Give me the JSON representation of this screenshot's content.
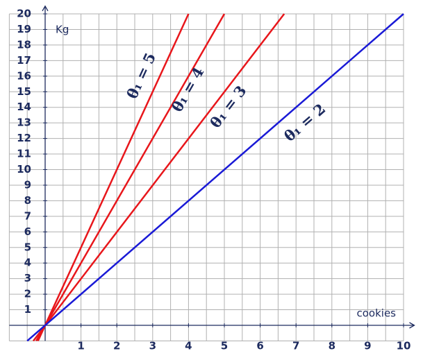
{
  "chart_data": {
    "type": "line",
    "x_label": "cookies",
    "y_label": "Kg",
    "xlim": [
      -1,
      10.3
    ],
    "ylim": [
      -1,
      20.5
    ],
    "xticks": [
      1,
      2,
      3,
      4,
      5,
      6,
      7,
      8,
      9,
      10
    ],
    "yticks": [
      1,
      2,
      3,
      4,
      5,
      6,
      7,
      8,
      9,
      10,
      11,
      12,
      13,
      14,
      15,
      16,
      17,
      18,
      19,
      20
    ],
    "xgrid": [
      -1,
      -0.5,
      0,
      0.5,
      1,
      1.5,
      2,
      2.5,
      3,
      3.5,
      4,
      4.5,
      5,
      5.5,
      6,
      6.5,
      7,
      7.5,
      8,
      8.5,
      9,
      9.5,
      10
    ],
    "ygrid": [
      -1,
      0,
      1,
      2,
      3,
      4,
      5,
      6,
      7,
      8,
      9,
      10,
      11,
      12,
      13,
      14,
      15,
      16,
      17,
      18,
      19,
      20
    ],
    "grid": true,
    "series": [
      {
        "name": "θ₁ = 5",
        "color": "#e8161b",
        "x": [
          -0.2,
          4
        ],
        "values": [
          -1,
          20
        ]
      },
      {
        "name": "θ₁ = 4",
        "color": "#e8161b",
        "x": [
          -0.25,
          5
        ],
        "values": [
          -1,
          20
        ]
      },
      {
        "name": "θ₁ = 3",
        "color": "#e8161b",
        "x": [
          -0.33,
          6.67
        ],
        "values": [
          -1,
          20
        ]
      },
      {
        "name": "θ₁ = 2",
        "color": "#1a1ad6",
        "x": [
          -0.5,
          10
        ],
        "values": [
          -1,
          20
        ]
      }
    ]
  }
}
